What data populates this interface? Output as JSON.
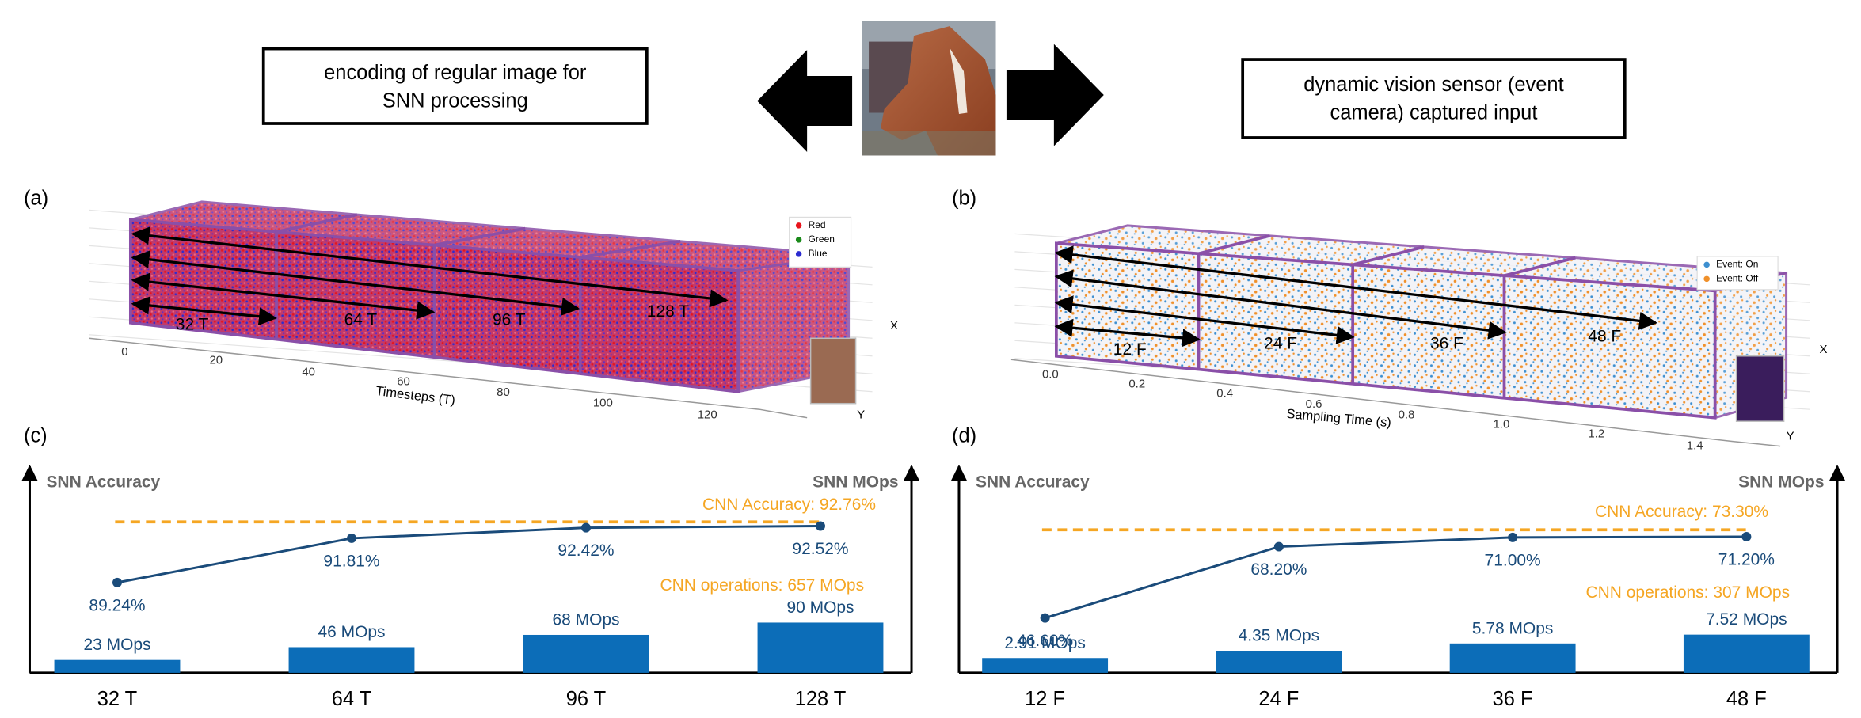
{
  "header": {
    "left_box": [
      "encoding of regular image for",
      "SNN processing"
    ],
    "right_box": [
      "dynamic vision sensor (event",
      "camera) captured input"
    ]
  },
  "panels": [
    {
      "label": "(a)",
      "segments": [
        "32 T",
        "64 T",
        "96 T",
        "128 T"
      ],
      "xticks": [
        "0",
        "20",
        "40",
        "60",
        "80",
        "100",
        "120"
      ],
      "xlabel": "Timesteps (T)",
      "legend": [
        "Red",
        "Green",
        "Blue"
      ],
      "axis_x": "X",
      "axis_y": "Y"
    },
    {
      "label": "(b)",
      "segments": [
        "12 F",
        "24 F",
        "36 F",
        "48 F"
      ],
      "xticks": [
        "0.0",
        "0.2",
        "0.4",
        "0.6",
        "0.8",
        "1.0",
        "1.2",
        "1.4"
      ],
      "xlabel": "Sampling Time (s)",
      "legend": [
        "Event: On",
        "Event: Off"
      ],
      "axis_x": "X",
      "axis_y": "Y"
    }
  ],
  "chart_data": [
    {
      "type": "combo",
      "label": "(c)",
      "categories": [
        "32 T",
        "64 T",
        "96 T",
        "128 T"
      ],
      "y_title": "SNN Accuracy",
      "y2_title": "SNN MOps",
      "ylim": [
        84,
        95.5
      ],
      "y2lim": [
        0,
        355
      ],
      "series": [
        {
          "kind": "line",
          "color": "#1a4b7a",
          "values": [
            89.24,
            91.81,
            92.42,
            92.52
          ],
          "value_labels": [
            "89.24%",
            "91.81%",
            "92.42%",
            "92.52%"
          ]
        },
        {
          "kind": "bar",
          "axis": "y2",
          "color": "#0c6db8",
          "values": [
            23,
            46,
            68,
            90
          ],
          "value_labels": [
            "23 MOps",
            "46 MOps",
            "68 MOps",
            "90 MOps"
          ]
        }
      ],
      "reference": {
        "value": 92.76,
        "label": "CNN Accuracy: 92.76%",
        "color": "#f5a623"
      },
      "annotations": [
        "CNN operations: 657 MOps"
      ]
    },
    {
      "type": "combo",
      "label": "(d)",
      "categories": [
        "12 F",
        "24 F",
        "36 F",
        "48 F"
      ],
      "y_title": "SNN Accuracy",
      "y2_title": "SNN MOps",
      "ylim": [
        30,
        90
      ],
      "y2lim": [
        0,
        39
      ],
      "series": [
        {
          "kind": "line",
          "color": "#1a4b7a",
          "values": [
            46.6,
            68.2,
            71.0,
            71.2
          ],
          "value_labels": [
            "46.60%",
            "68.20%",
            "71.00%",
            "71.20%"
          ]
        },
        {
          "kind": "bar",
          "axis": "y2",
          "color": "#0c6db8",
          "values": [
            2.91,
            4.35,
            5.78,
            7.52
          ],
          "value_labels": [
            "2.91 MOps",
            "4.35 MOps",
            "5.78 MOps",
            "7.52 MOps"
          ]
        }
      ],
      "reference": {
        "value": 73.3,
        "label": "CNN Accuracy: 73.30%",
        "color": "#f5a623"
      },
      "annotations": [
        "CNN operations: 307 MOps"
      ]
    }
  ]
}
